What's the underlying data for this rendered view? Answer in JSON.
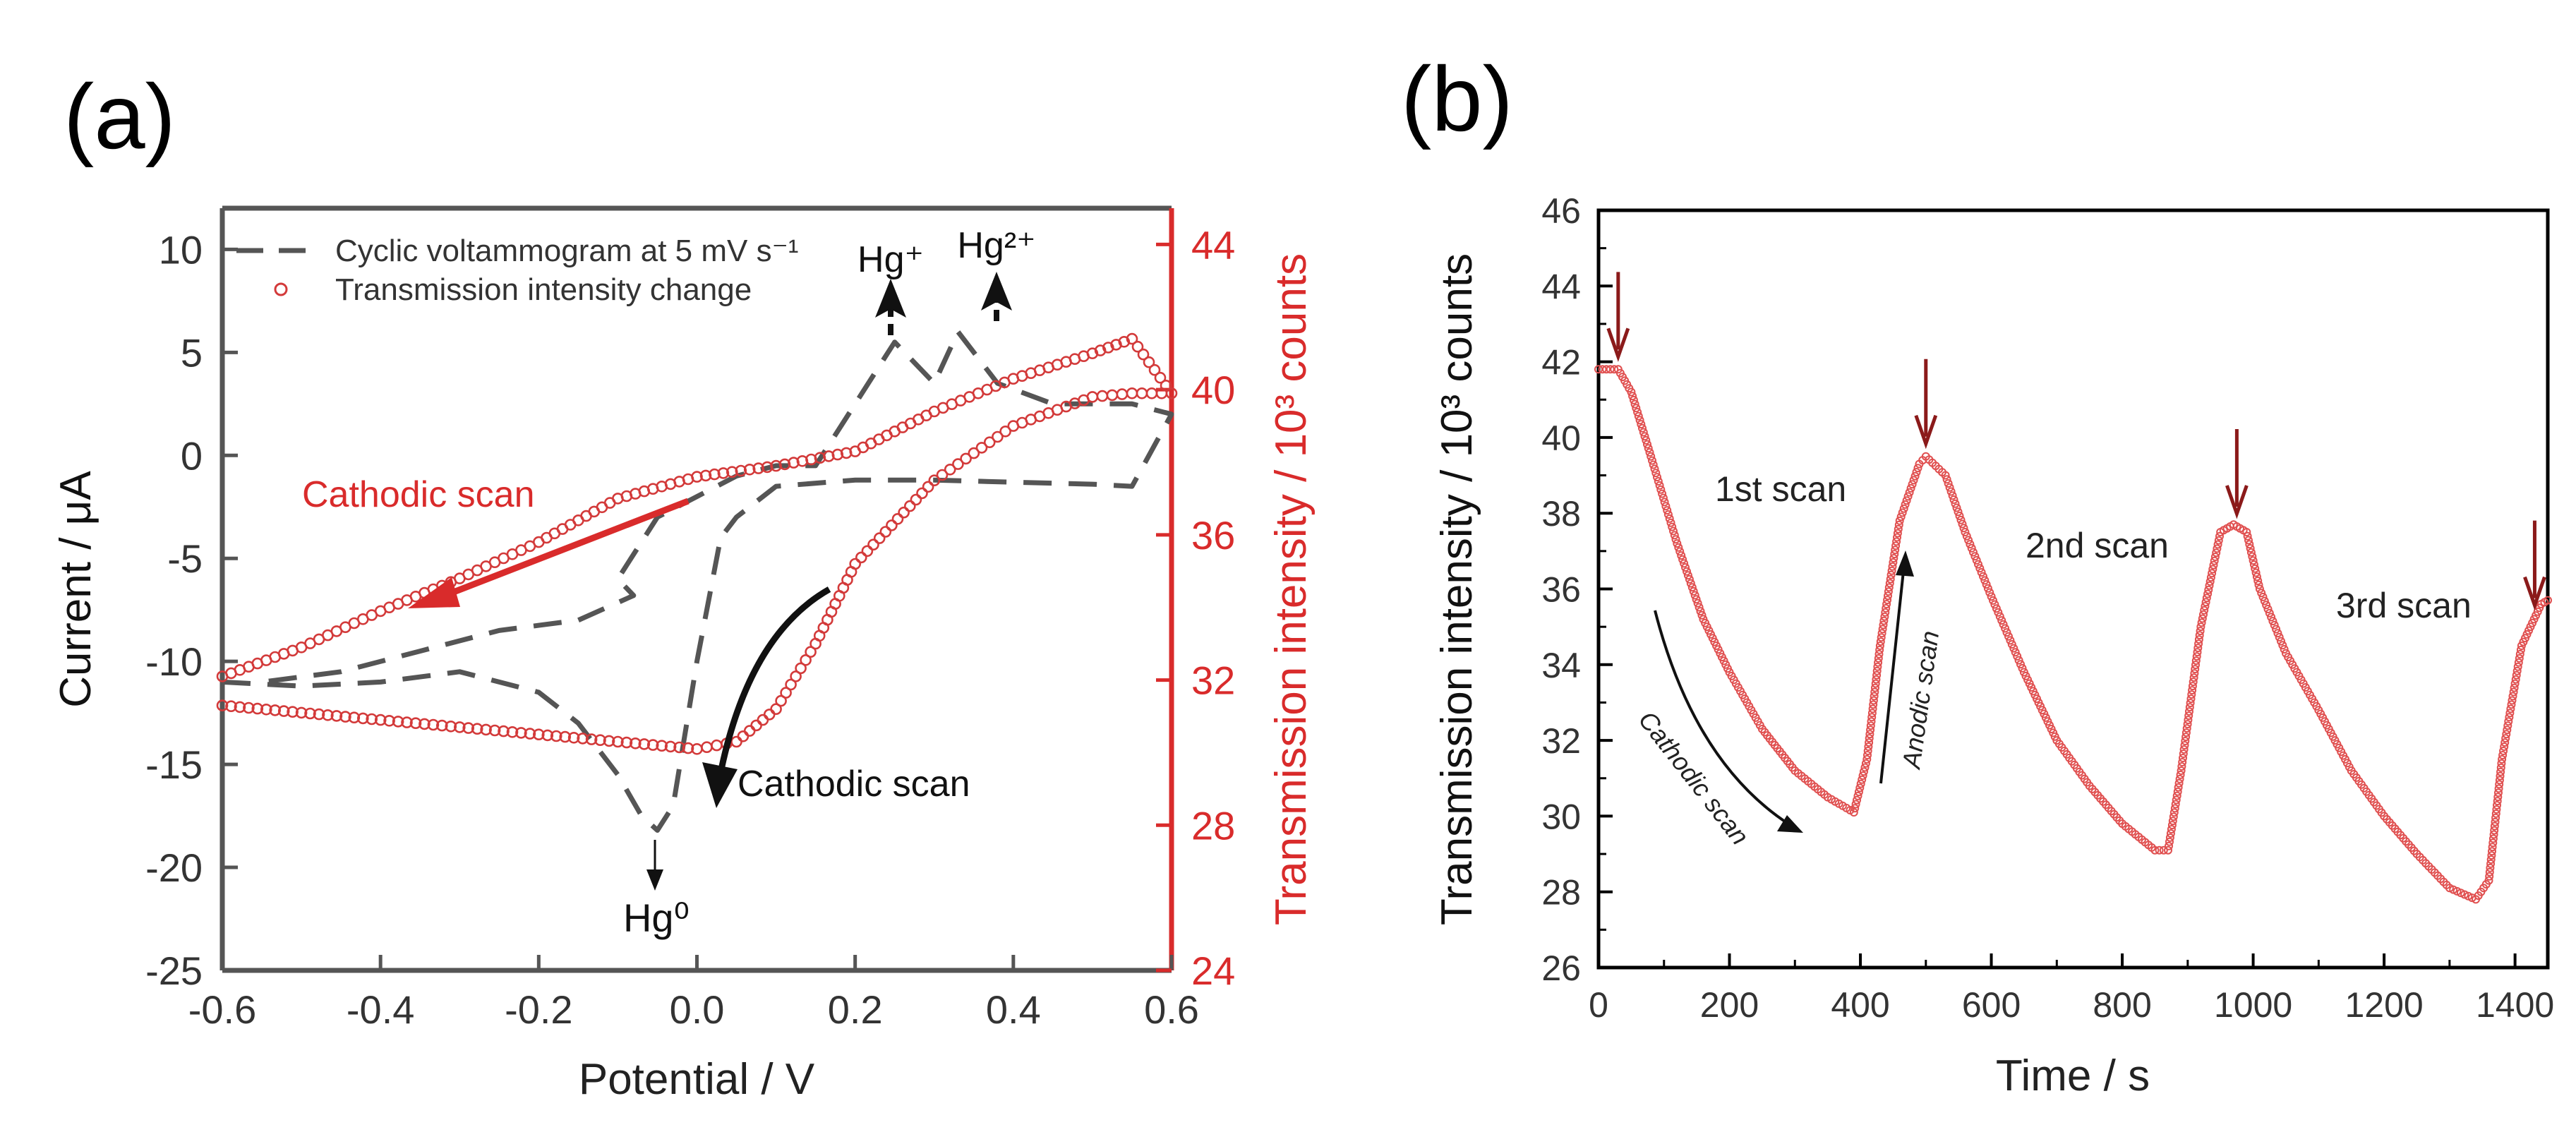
{
  "colors": {
    "axis": "#000000",
    "axis_gray": "#555555",
    "red": "#d92b2b",
    "dark_red": "#8b1a1a",
    "dash": "#555555",
    "marker": "#d33a3a"
  },
  "chart_data": [
    {
      "panel_label": "(a)",
      "type": "line",
      "xlabel": "Potential  / V",
      "ylabel": "Current / μA",
      "y2label": "Transmission intensity / 10³ counts",
      "xlim": [
        -0.6,
        0.6
      ],
      "ylim": [
        -25,
        12
      ],
      "y2lim": [
        24,
        45
      ],
      "xticks": [
        "-0.6",
        "-0.4",
        "-0.2",
        "0.0",
        "0.2",
        "0.4",
        "0.6"
      ],
      "yticks": [
        "10",
        "5",
        "0",
        "-5",
        "-10",
        "-15",
        "-20",
        "-25"
      ],
      "y2ticks": [
        "44",
        "40",
        "36",
        "32",
        "28",
        "24"
      ],
      "legend": [
        {
          "label": "Cyclic voltammogram at 5 mV s⁻¹",
          "style": "dashed"
        },
        {
          "label": "Transmission intensity change",
          "style": "circle-marker"
        }
      ],
      "legend_position": "top-left",
      "annotations": {
        "hg_plus": "Hg⁺",
        "hg_2plus": "Hg²⁺",
        "hg_0": "Hg⁰",
        "cathodic_red": "Cathodic scan",
        "cathodic_black": "Cathodic scan"
      },
      "series": [
        {
          "name": "Cyclic voltammogram at 5 mV s⁻¹",
          "axis": "left",
          "x": [
            -0.6,
            -0.5,
            -0.4,
            -0.3,
            -0.2,
            -0.15,
            -0.1,
            -0.07,
            -0.05,
            -0.03,
            0.0,
            0.03,
            0.05,
            0.1,
            0.2,
            0.3,
            0.4,
            0.5,
            0.55,
            0.6,
            0.55,
            0.45,
            0.38,
            0.33,
            0.3,
            0.25,
            0.2,
            0.15,
            0.1,
            0.05,
            0.0,
            -0.05,
            -0.1,
            -0.08,
            -0.15,
            -0.25,
            -0.35,
            -0.45,
            -0.55
          ],
          "y": [
            -11,
            -11.2,
            -11,
            -10.5,
            -11.5,
            -13,
            -15.5,
            -17.5,
            -18.2,
            -17,
            -10,
            -4,
            -3,
            -1.5,
            -1.2,
            -1.2,
            -1.3,
            -1.4,
            -1.5,
            2,
            2.5,
            2.5,
            3.5,
            6,
            3.5,
            5.5,
            2.5,
            -0.5,
            -0.5,
            -1,
            -2,
            -3,
            -6,
            -6.8,
            -8,
            -8.5,
            -9.5,
            -10.5,
            -11
          ],
          "line_break_order": "cycle"
        },
        {
          "name": "Transmission intensity change",
          "axis": "right",
          "x": [
            -0.6,
            -0.5,
            -0.4,
            -0.3,
            -0.2,
            -0.1,
            0.0,
            0.05,
            0.1,
            0.15,
            0.2,
            0.3,
            0.4,
            0.5,
            0.55,
            0.6,
            0.55,
            0.5,
            0.4,
            0.3,
            0.2,
            0.1,
            0.0,
            -0.1,
            -0.2,
            -0.3,
            -0.4,
            -0.5,
            -0.6
          ],
          "y": [
            31.3,
            31.1,
            30.9,
            30.7,
            30.5,
            30.3,
            30.1,
            30.3,
            31.2,
            33.0,
            35.2,
            37.5,
            39.0,
            39.8,
            39.9,
            39.9,
            41.4,
            41.0,
            40.3,
            39.4,
            38.3,
            37.9,
            37.6,
            37.0,
            35.8,
            34.8,
            33.9,
            32.9,
            32.1
          ]
        }
      ]
    },
    {
      "panel_label": "(b)",
      "type": "scatter",
      "xlabel": "Time / s",
      "ylabel": "Transmission intensity / 10³ counts",
      "xlim": [
        0,
        1450
      ],
      "ylim": [
        26,
        46
      ],
      "xticks": [
        "0",
        "200",
        "400",
        "600",
        "800",
        "1000",
        "1200",
        "1400"
      ],
      "yticks": [
        "46",
        "44",
        "42",
        "40",
        "38",
        "36",
        "34",
        "32",
        "30",
        "28",
        "26"
      ],
      "annotations": {
        "scan1": "1st scan",
        "scan2": "2nd scan",
        "scan3": "3rd scan",
        "cathodic": "Cathodic scan",
        "anodic": "Anodic scan"
      },
      "peak_markers_x": [
        30,
        500,
        975,
        1430
      ],
      "series": [
        {
          "name": "Transmission intensity",
          "x": [
            0,
            30,
            50,
            80,
            120,
            160,
            200,
            250,
            300,
            350,
            390,
            410,
            430,
            460,
            490,
            500,
            530,
            560,
            600,
            650,
            700,
            750,
            800,
            850,
            870,
            890,
            920,
            950,
            970,
            990,
            1010,
            1050,
            1100,
            1150,
            1200,
            1250,
            1300,
            1340,
            1360,
            1380,
            1410,
            1440,
            1450
          ],
          "y": [
            41.8,
            41.8,
            41.2,
            39.5,
            37.2,
            35.2,
            33.8,
            32.3,
            31.2,
            30.5,
            30.1,
            31.5,
            34.5,
            37.8,
            39.3,
            39.5,
            39.0,
            37.5,
            35.8,
            33.8,
            32.0,
            30.8,
            29.8,
            29.1,
            29.1,
            31.2,
            35.0,
            37.5,
            37.7,
            37.5,
            36.0,
            34.3,
            32.8,
            31.2,
            30.0,
            29.0,
            28.1,
            27.8,
            28.3,
            31.5,
            34.5,
            35.6,
            35.7
          ]
        }
      ]
    }
  ]
}
